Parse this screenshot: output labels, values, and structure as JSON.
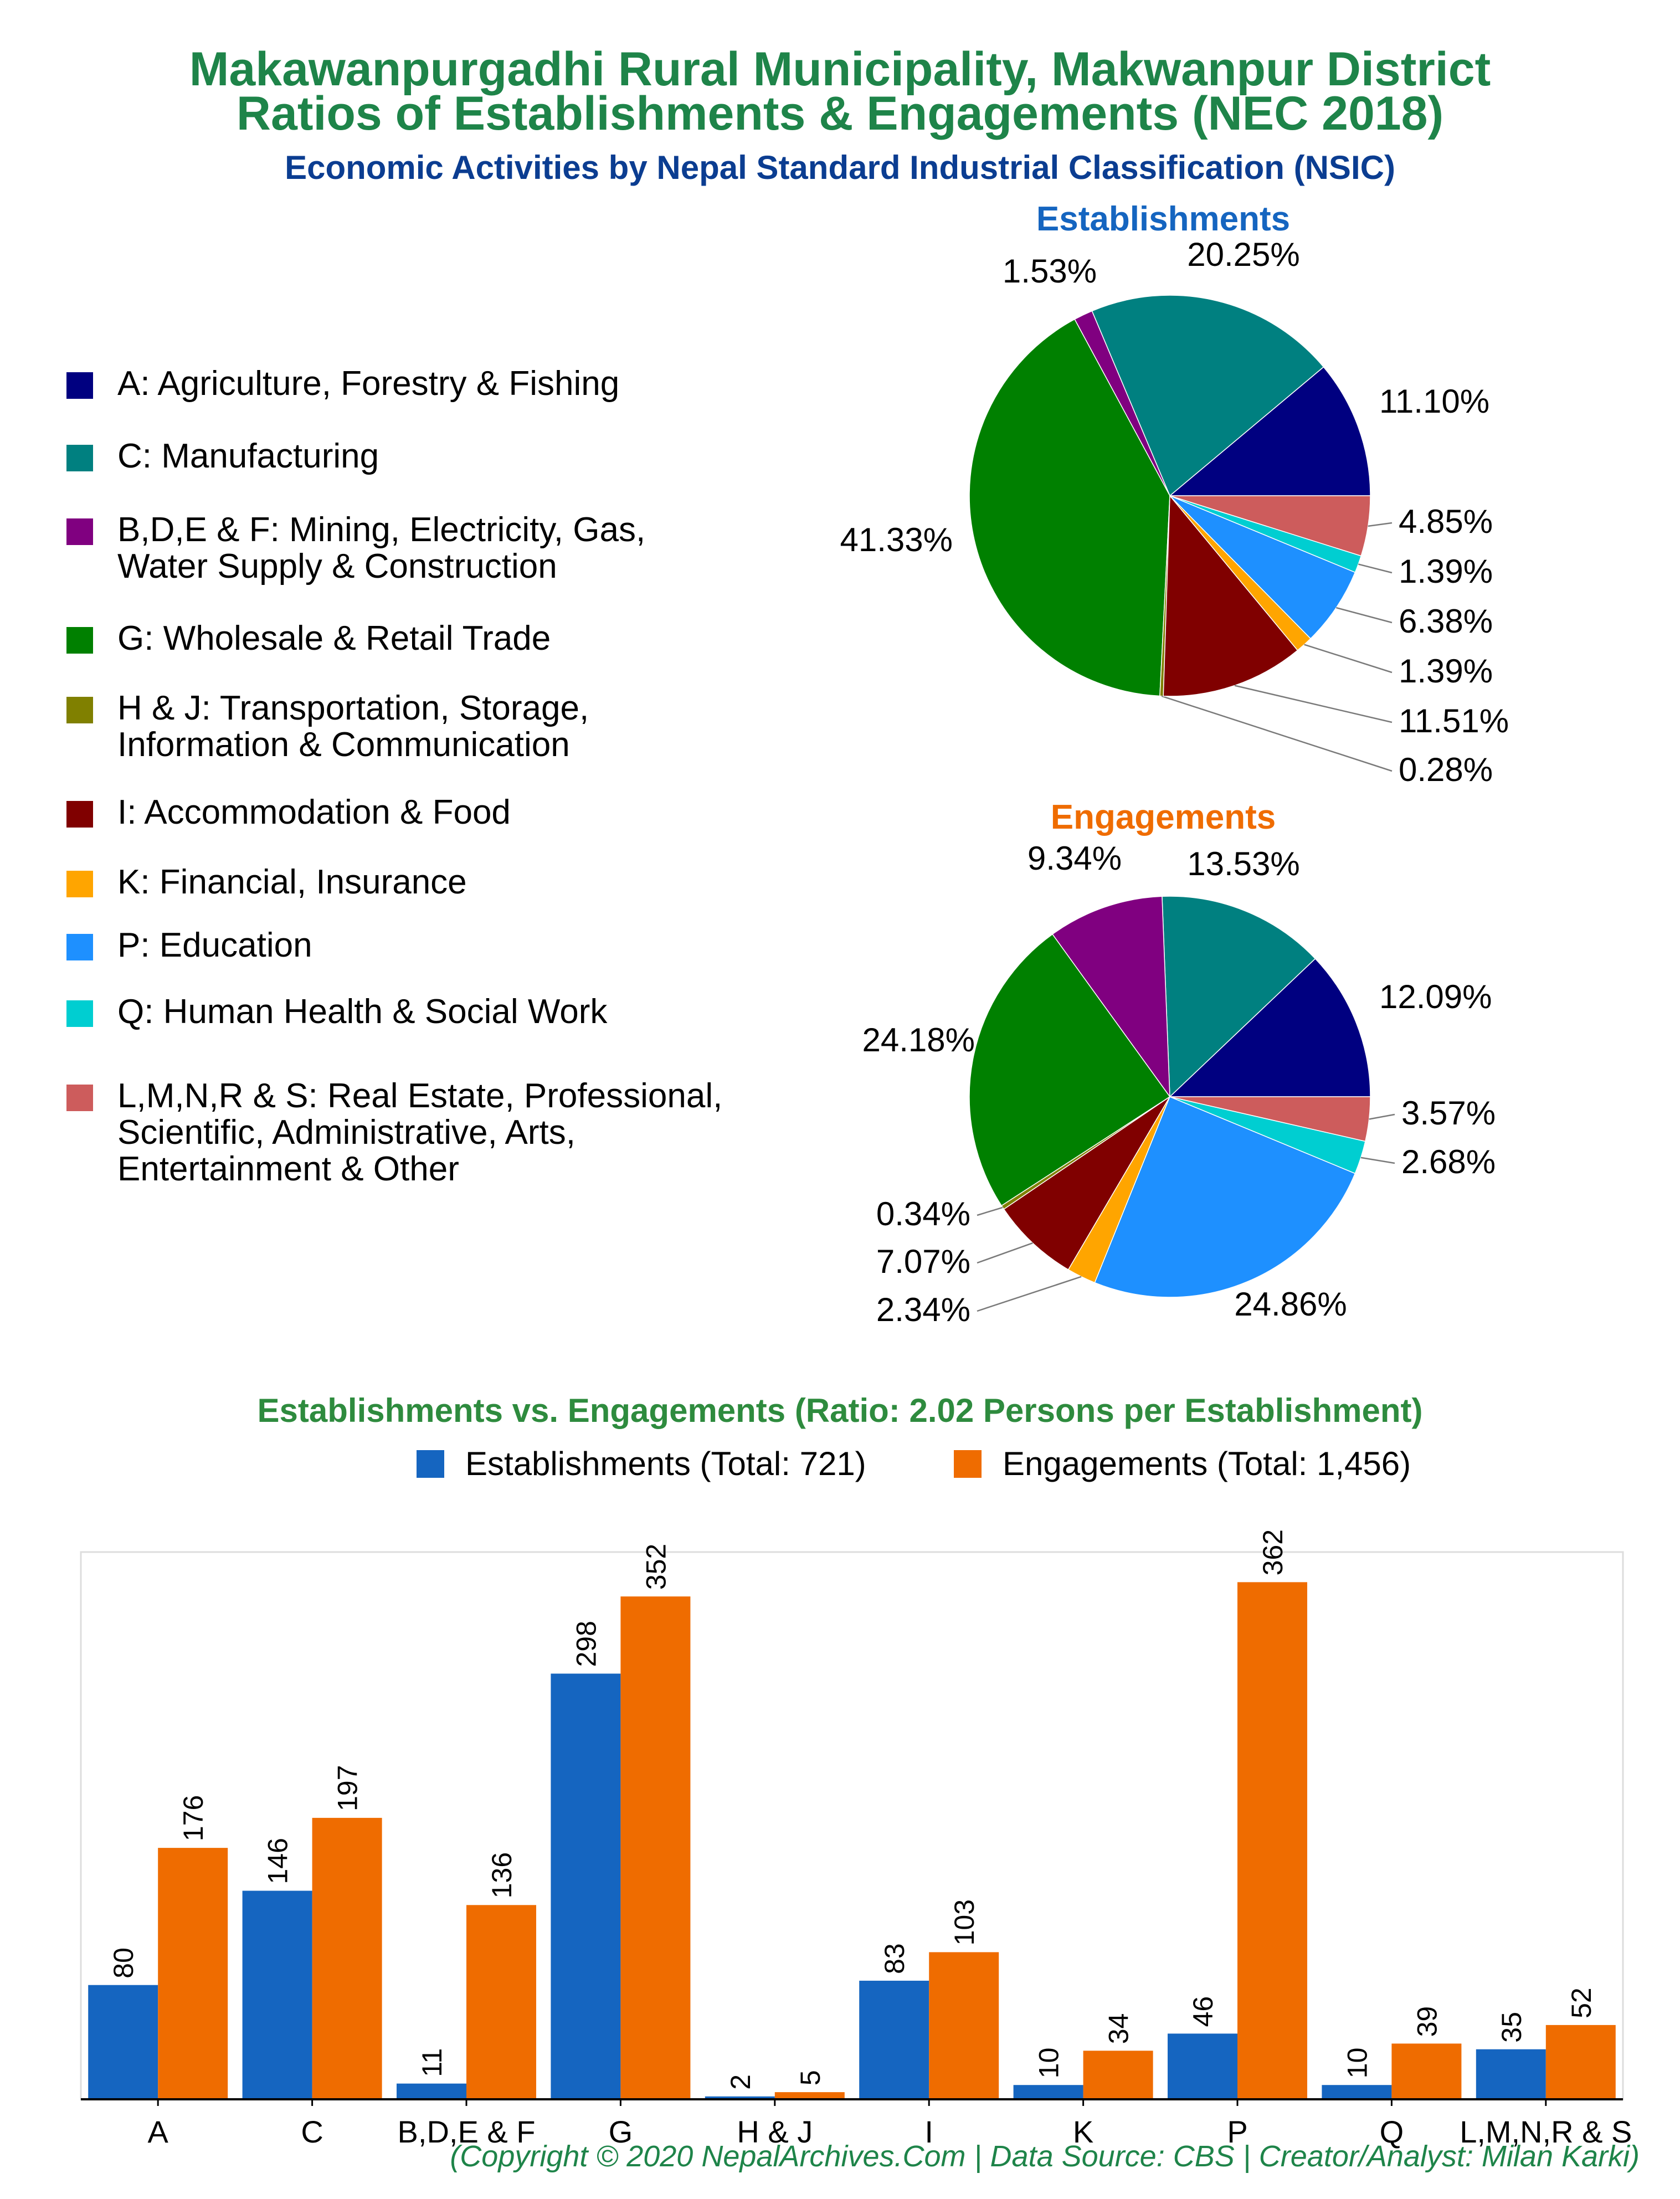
{
  "header": {
    "title_line1": "Makawanpurgadhi Rural Municipality, Makwanpur District",
    "title_line2": "Ratios of Establishments & Engagements (NEC 2018)",
    "subtitle": "Economic Activities by Nepal Standard Industrial Classification (NSIC)"
  },
  "legend": [
    {
      "label": "A: Agriculture, Forestry & Fishing",
      "color": "#000080"
    },
    {
      "label": "C: Manufacturing",
      "color": "#008080"
    },
    {
      "label": "B,D,E & F: Mining, Electricity, Gas,\nWater Supply & Construction",
      "color": "#800080"
    },
    {
      "label": "G: Wholesale & Retail Trade",
      "color": "#008000"
    },
    {
      "label": "H & J: Transportation, Storage,\nInformation & Communication",
      "color": "#808000"
    },
    {
      "label": "I: Accommodation & Food",
      "color": "#800000"
    },
    {
      "label": "K: Financial, Insurance",
      "color": "#FFA500"
    },
    {
      "label": "P: Education",
      "color": "#1E90FF"
    },
    {
      "label": "Q: Human Health & Social Work",
      "color": "#00CED1"
    },
    {
      "label": "L,M,N,R & S: Real Estate, Professional,\nScientific, Administrative, Arts,\nEntertainment & Other",
      "color": "#CD5C5C"
    }
  ],
  "chart_data": [
    {
      "type": "pie",
      "title": "Establishments",
      "title_color": "#1565C0",
      "categories": [
        "A",
        "C",
        "B,D,E & F",
        "G",
        "H & J",
        "I",
        "K",
        "P",
        "Q",
        "L,M,N,R & S"
      ],
      "values": [
        11.1,
        20.25,
        1.53,
        41.33,
        0.28,
        11.51,
        1.39,
        6.38,
        1.39,
        4.85
      ],
      "labels": [
        "11.10%",
        "20.25%",
        "1.53%",
        "41.33%",
        "0.28%",
        "11.51%",
        "1.39%",
        "6.38%",
        "1.39%",
        "4.85%"
      ]
    },
    {
      "type": "pie",
      "title": "Engagements",
      "title_color": "#EF6C00",
      "categories": [
        "A",
        "C",
        "B,D,E & F",
        "G",
        "H & J",
        "I",
        "K",
        "P",
        "Q",
        "L,M,N,R & S"
      ],
      "values": [
        12.09,
        13.53,
        9.34,
        24.18,
        0.34,
        7.07,
        2.34,
        24.86,
        2.68,
        3.57
      ],
      "labels": [
        "12.09%",
        "13.53%",
        "9.34%",
        "24.18%",
        "0.34%",
        "7.07%",
        "2.34%",
        "24.86%",
        "2.68%",
        "3.57%"
      ]
    },
    {
      "type": "bar",
      "title": "Establishments vs. Engagements (Ratio: 2.02 Persons per Establishment)",
      "categories": [
        "A",
        "C",
        "B,D,E & F",
        "G",
        "H & J",
        "I",
        "K",
        "P",
        "Q",
        "L,M,N,R & S"
      ],
      "series": [
        {
          "name": "Establishments (Total: 721)",
          "color": "#1565C0",
          "values": [
            80,
            146,
            11,
            298,
            2,
            83,
            10,
            46,
            10,
            35
          ]
        },
        {
          "name": "Engagements (Total: 1,456)",
          "color": "#EF6C00",
          "values": [
            176,
            197,
            136,
            352,
            5,
            103,
            34,
            362,
            39,
            52
          ]
        }
      ],
      "ylim": [
        0,
        380
      ]
    }
  ],
  "footer": "(Copyright © 2020 NepalArchives.Com | Data Source: CBS | Creator/Analyst: Milan Karki)"
}
